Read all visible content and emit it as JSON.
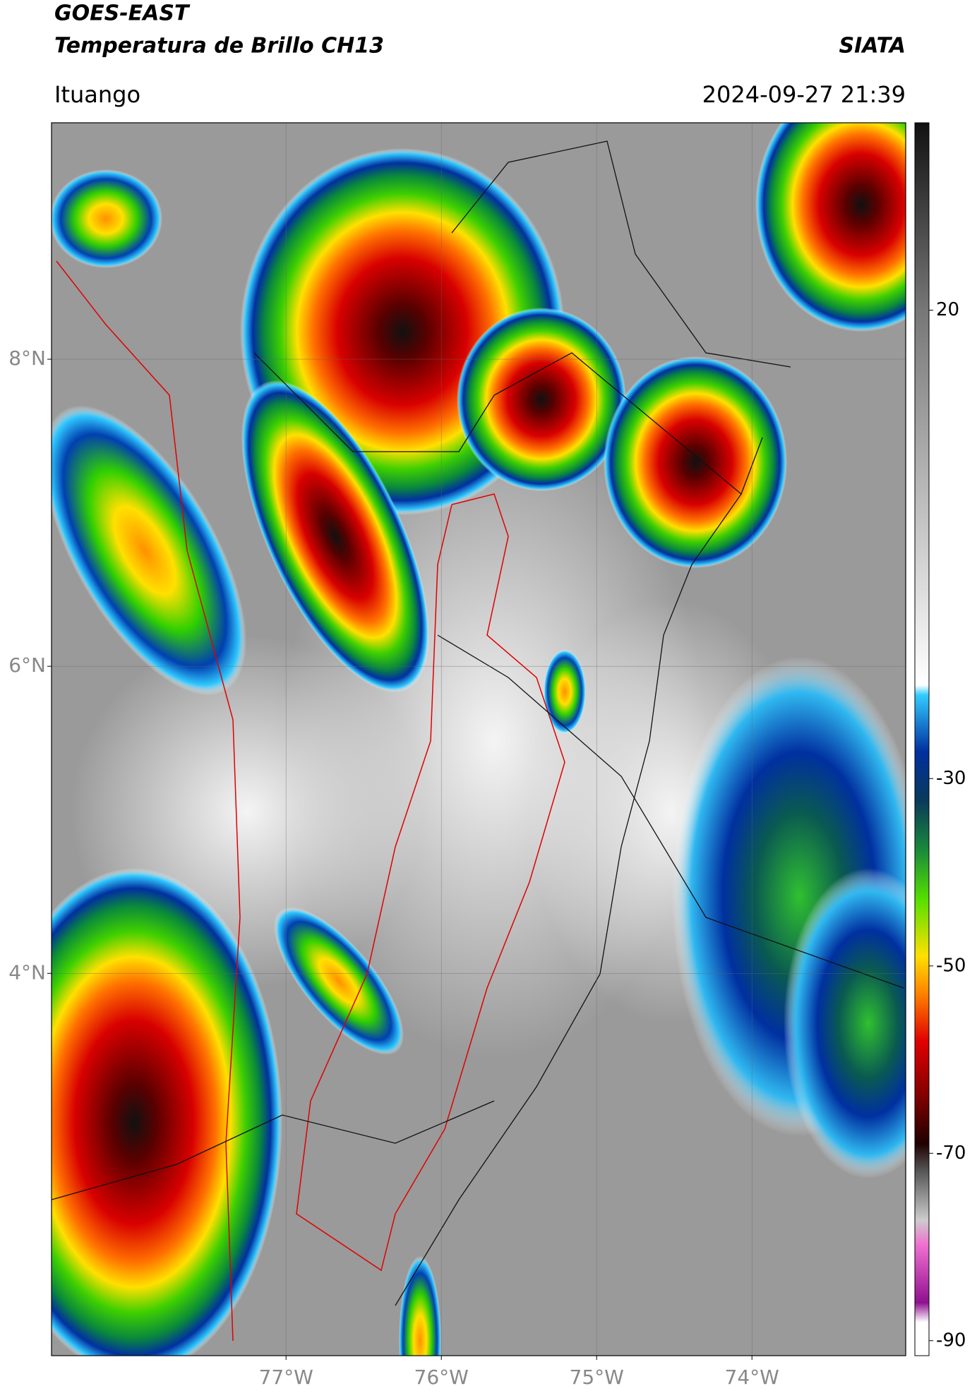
{
  "header": {
    "title": "GOES-EAST",
    "subtitle": "Temperatura de Brillo CH13",
    "brand": "SIATA",
    "location": "Ituango",
    "datetime": "2024-09-27 21:39"
  },
  "map": {
    "xlim": [
      -78.51,
      -73.01
    ],
    "ylim": [
      1.51,
      9.54
    ],
    "xticks": [
      {
        "value": -77,
        "label": "77°W"
      },
      {
        "value": -76,
        "label": "76°W"
      },
      {
        "value": -75,
        "label": "75°W"
      },
      {
        "value": -74,
        "label": "74°W"
      }
    ],
    "yticks": [
      {
        "value": 8,
        "label": "8°N"
      },
      {
        "value": 6,
        "label": "6°N"
      },
      {
        "value": 4,
        "label": "4°N"
      }
    ]
  },
  "colorbar": {
    "clim": [
      -91.6,
      40
    ],
    "ticks": [
      20,
      -30,
      -50,
      -70,
      -90
    ]
  }
}
